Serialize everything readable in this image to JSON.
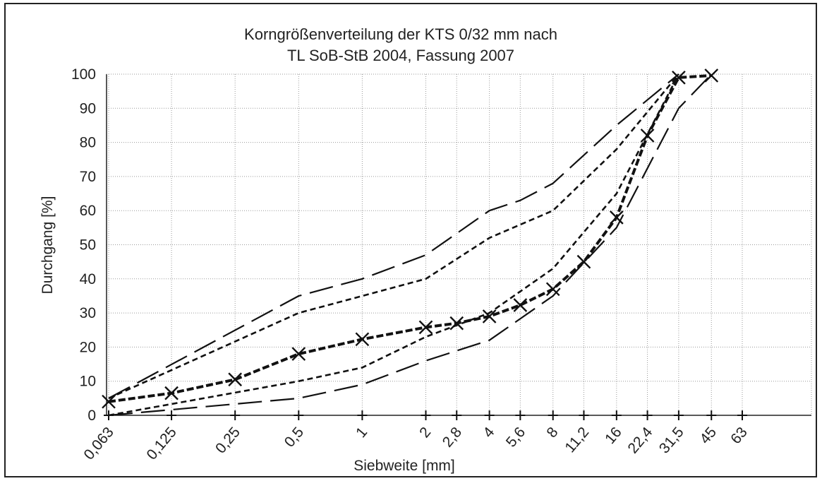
{
  "chart_data": {
    "type": "line",
    "title_lines": [
      "Korngrößenverteilung der KTS 0/32 mm nach",
      "TL SoB-StB 2004, Fassung 2007"
    ],
    "xlabel": "Siebweite [mm]",
    "ylabel": "Durchgang [%]",
    "x_categories": [
      "0,063",
      "0,125",
      "0,25",
      "0,5",
      "1",
      "2",
      "2,8",
      "4",
      "5,6",
      "8",
      "11,2",
      "16",
      "22,4",
      "31,5",
      "45",
      "63"
    ],
    "x_values_mm": [
      0.063,
      0.125,
      0.25,
      0.5,
      1,
      2,
      2.8,
      4,
      5.6,
      8,
      11.2,
      16,
      22.4,
      31.5,
      45,
      63
    ],
    "x_scale": "log",
    "ylim": [
      0,
      100
    ],
    "yticks": [
      "0",
      "10",
      "20",
      "30",
      "40",
      "50",
      "60",
      "70",
      "80",
      "90",
      "100"
    ],
    "grid": true,
    "series": [
      {
        "style": "long-dash",
        "x": [
          0.063,
          0.5,
          1,
          2,
          4,
          5.6,
          8,
          16,
          31.5
        ],
        "y": [
          5,
          35,
          40,
          47,
          60,
          63,
          68,
          85,
          100
        ]
      },
      {
        "style": "short-dash",
        "x": [
          0.063,
          0.5,
          1,
          2,
          4,
          8,
          16,
          31.5
        ],
        "y": [
          5,
          30,
          35,
          40,
          52,
          60,
          78,
          100
        ]
      },
      {
        "style": "short-dash",
        "x": [
          0.063,
          0.5,
          1,
          2,
          4,
          8,
          16,
          31.5
        ],
        "y": [
          0,
          10,
          14,
          23,
          30,
          43,
          65,
          100
        ]
      },
      {
        "style": "long-dash",
        "x": [
          0.063,
          0.5,
          1,
          2,
          4,
          8,
          16,
          31.5,
          45
        ],
        "y": [
          0,
          5,
          9,
          16,
          22,
          35,
          55,
          90,
          100
        ]
      },
      {
        "style": "bold-dash-x",
        "x": [
          0.063,
          0.125,
          0.25,
          0.5,
          1,
          2,
          2.8,
          4,
          5.6,
          8,
          11.2,
          16,
          22.4,
          31.5,
          45
        ],
        "y": [
          4,
          6.5,
          10.5,
          18,
          22.3,
          25.8,
          27,
          29,
          32.3,
          37,
          45,
          58,
          82,
          99,
          99.6
        ]
      }
    ],
    "baseline_markers": "plus"
  }
}
